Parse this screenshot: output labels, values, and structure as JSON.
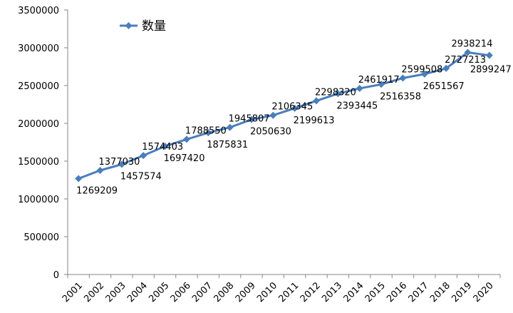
{
  "chart_data": {
    "type": "line",
    "categories": [
      "2001",
      "2002",
      "2003",
      "2004",
      "2005",
      "2006",
      "2007",
      "2008",
      "2009",
      "2010",
      "2011",
      "2012",
      "2013",
      "2014",
      "2015",
      "2016",
      "2017",
      "2018",
      "2019",
      "2020"
    ],
    "series": [
      {
        "name": "数量",
        "color": "#4a7ebb",
        "marker": "diamond",
        "values": [
          1269209,
          1377030,
          1457574,
          1574403,
          1697420,
          1788550,
          1875831,
          1945807,
          2050630,
          2106345,
          2199613,
          2298320,
          2393445,
          2461917,
          2516358,
          2599508,
          2651567,
          2727213,
          2938214,
          2899247
        ]
      }
    ],
    "ylim": [
      0,
      3500000
    ],
    "y_ticks": [
      0,
      500000,
      1000000,
      1500000,
      2000000,
      2500000,
      3000000,
      3500000
    ],
    "grid": false,
    "legend_position": "top-left",
    "data_labels": true
  }
}
